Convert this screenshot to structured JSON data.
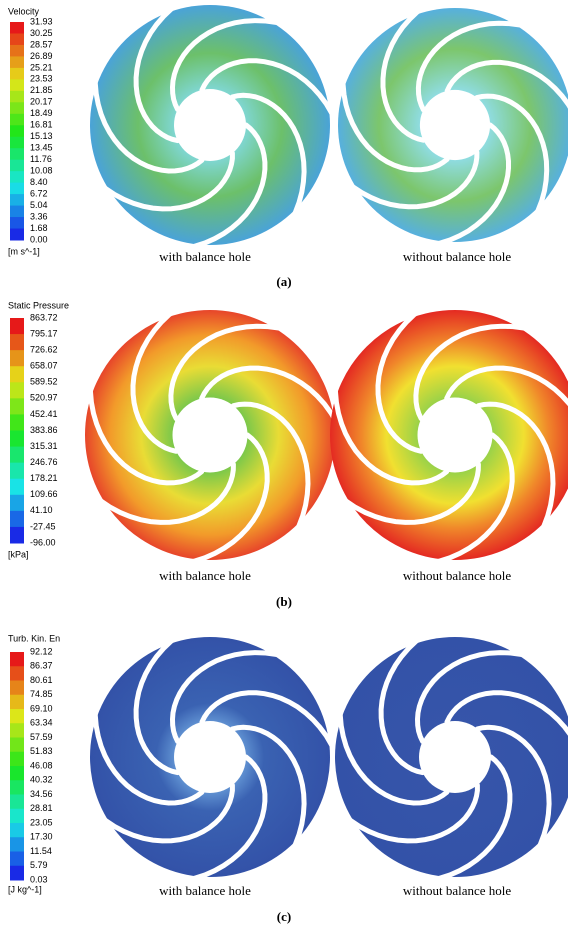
{
  "panels": [
    {
      "legend": {
        "title": "Velocity",
        "labels": [
          "31.93",
          "30.25",
          "28.57",
          "26.89",
          "25.21",
          "23.53",
          "21.85",
          "20.17",
          "18.49",
          "16.81",
          "15.13",
          "13.45",
          "11.76",
          "10.08",
          "8.40",
          "6.72",
          "5.04",
          "3.36",
          "1.68",
          "0.00"
        ],
        "unit": "[m s^-1]"
      },
      "captions": [
        "with balance hole",
        "without balance hole"
      ],
      "label": "(a)"
    },
    {
      "legend": {
        "title": "Static Pressure",
        "labels": [
          "863.72",
          "795.17",
          "726.62",
          "658.07",
          "589.52",
          "520.97",
          "452.41",
          "383.86",
          "315.31",
          "246.76",
          "178.21",
          "109.66",
          "41.10",
          "-27.45",
          "-96.00"
        ],
        "unit": "[kPa]"
      },
      "captions": [
        "with balance hole",
        "without balance hole"
      ],
      "label": "(b)"
    },
    {
      "legend": {
        "title": "Turb. Kin. En",
        "labels": [
          "92.12",
          "86.37",
          "80.61",
          "74.85",
          "69.10",
          "63.34",
          "57.59",
          "51.83",
          "46.08",
          "40.32",
          "34.56",
          "28.81",
          "23.05",
          "17.30",
          "11.54",
          "5.79",
          "0.03"
        ],
        "unit": "[J kg^-1]"
      },
      "captions": [
        "with balance hole",
        "without balance hole"
      ],
      "label": "(c)"
    }
  ]
}
